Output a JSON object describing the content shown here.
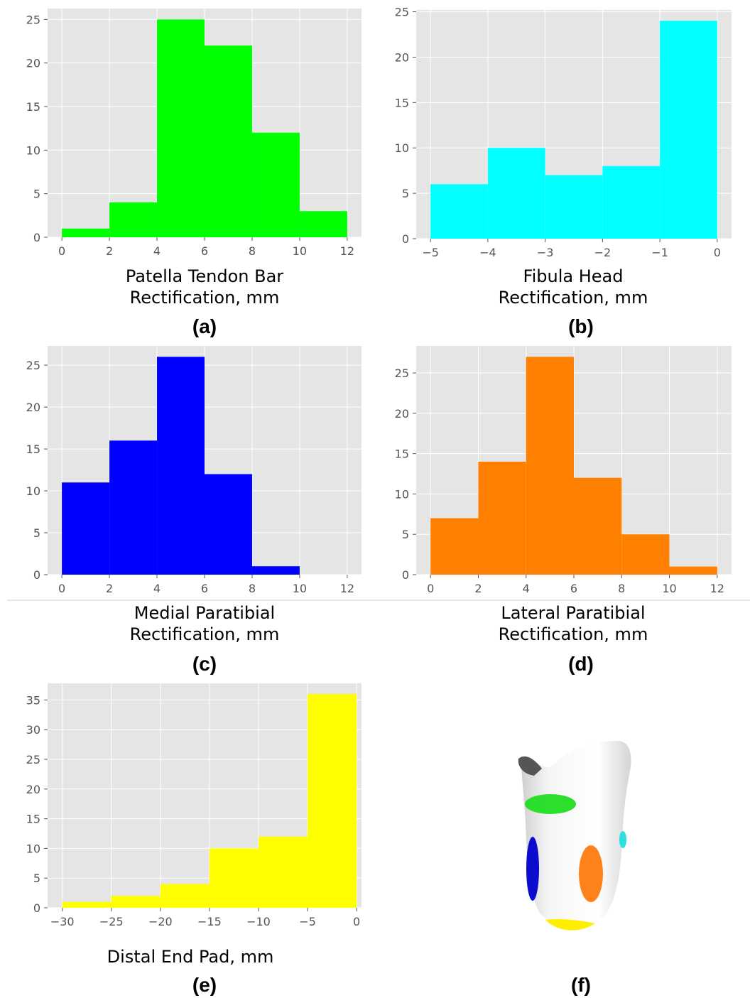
{
  "panels": [
    {
      "label": "(a)",
      "xlabel_line1": "Patella Tendon Bar",
      "xlabel_line2": "Rectification, mm"
    },
    {
      "label": "(b)",
      "xlabel_line1": "Fibula Head",
      "xlabel_line2": "Rectification, mm"
    },
    {
      "label": "(c)",
      "xlabel_line1": "Medial Paratibial",
      "xlabel_line2": "Rectification, mm"
    },
    {
      "label": "(d)",
      "xlabel_line1": "Lateral Paratibial",
      "xlabel_line2": "Rectification, mm"
    },
    {
      "label": "(e)",
      "xlabel_line1": "Distal End Pad, mm",
      "xlabel_line2": ""
    },
    {
      "label": "(f)"
    }
  ],
  "chart_data": [
    {
      "type": "bar",
      "title": "",
      "xlabel": "Patella Tendon Bar Rectification, mm",
      "ylabel": "",
      "bin_edges": [
        0,
        2,
        4,
        6,
        8,
        10,
        12
      ],
      "values": [
        1,
        4,
        25,
        22,
        12,
        3
      ],
      "xlim": [
        -0.6,
        12.6
      ],
      "ylim": [
        0,
        26.25
      ],
      "xticks": [
        0,
        2,
        4,
        6,
        8,
        10,
        12
      ],
      "xtick_labels": [
        "0",
        "2",
        "4",
        "6",
        "8",
        "10",
        "12"
      ],
      "yticks": [
        0,
        5,
        10,
        15,
        20,
        25
      ],
      "color": "#00ff00",
      "grid": true
    },
    {
      "type": "bar",
      "title": "",
      "xlabel": "Fibula Head Rectification, mm",
      "ylabel": "",
      "bin_edges": [
        -5,
        -4,
        -3,
        -2,
        -1,
        0
      ],
      "values": [
        6,
        10,
        7,
        8,
        24
      ],
      "xlim": [
        -5.25,
        0.25
      ],
      "ylim": [
        0,
        25.2
      ],
      "xticks": [
        -5,
        -4,
        -3,
        -2,
        -1,
        0
      ],
      "xtick_labels": [
        "−5",
        "−4",
        "−3",
        "−2",
        "−1",
        "0"
      ],
      "yticks": [
        0,
        5,
        10,
        15,
        20,
        25
      ],
      "color": "#00ffff",
      "grid": true
    },
    {
      "type": "bar",
      "title": "",
      "xlabel": "Medial Paratibial Rectification, mm",
      "ylabel": "",
      "bin_edges": [
        0,
        2,
        4,
        6,
        8,
        10
      ],
      "values": [
        11,
        16,
        26,
        12,
        1
      ],
      "xlim": [
        -0.6,
        12.6
      ],
      "ylim": [
        0,
        27.3
      ],
      "xticks": [
        0,
        2,
        4,
        6,
        8,
        10,
        12
      ],
      "xtick_labels": [
        "0",
        "2",
        "4",
        "6",
        "8",
        "10",
        "12"
      ],
      "yticks": [
        0,
        5,
        10,
        15,
        20,
        25
      ],
      "color": "#0000ff",
      "grid": true
    },
    {
      "type": "bar",
      "title": "",
      "xlabel": "Lateral Paratibial Rectification, mm",
      "ylabel": "",
      "bin_edges": [
        0,
        2,
        4,
        6,
        8,
        10,
        12
      ],
      "values": [
        7,
        14,
        27,
        12,
        5,
        1
      ],
      "xlim": [
        -0.6,
        12.6
      ],
      "ylim": [
        0,
        28.35
      ],
      "xticks": [
        0,
        2,
        4,
        6,
        8,
        10,
        12
      ],
      "xtick_labels": [
        "0",
        "2",
        "4",
        "6",
        "8",
        "10",
        "12"
      ],
      "yticks": [
        0,
        5,
        10,
        15,
        20,
        25
      ],
      "color": "#ff8000",
      "grid": true
    },
    {
      "type": "bar",
      "title": "",
      "xlabel": "Distal End Pad, mm",
      "ylabel": "",
      "bin_edges": [
        -30,
        -25,
        -20,
        -15,
        -10,
        -5,
        0
      ],
      "values": [
        1,
        2,
        4,
        10,
        12,
        36
      ],
      "xlim": [
        -31.5,
        0.5
      ],
      "ylim": [
        0,
        37.8
      ],
      "xticks": [
        -30,
        -25,
        -20,
        -15,
        -10,
        -5,
        0
      ],
      "xtick_labels": [
        "−30",
        "−25",
        "−20",
        "−15",
        "−10",
        "−5",
        "0"
      ],
      "yticks": [
        0,
        5,
        10,
        15,
        20,
        25,
        30,
        35
      ],
      "color": "#ffff00",
      "grid": true
    }
  ],
  "colors": {
    "plot_background": "#e5e5e5",
    "grid": "#ffffff",
    "tick_text": "#555555",
    "patella": "#00ff00",
    "fibula": "#00ffff",
    "medial": "#0000ff",
    "lateral": "#ff8000",
    "distal": "#ffff00"
  }
}
